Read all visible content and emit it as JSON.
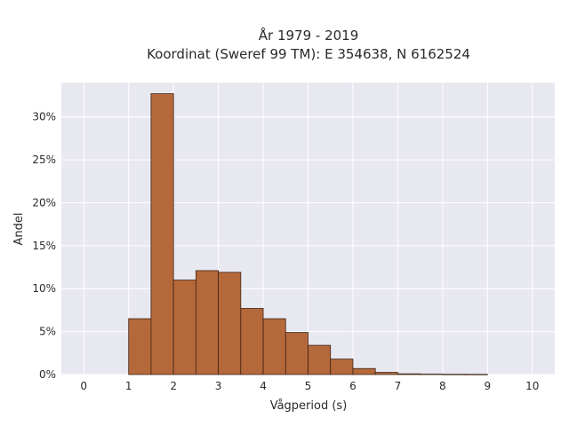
{
  "chart_data": {
    "type": "bar",
    "title_line1": "År 1979 - 2019",
    "title_line2": "Koordinat (Sweref 99 TM): E 354638, N 6162524",
    "xlabel": "Vågperiod (s)",
    "ylabel": "Andel",
    "xlim": [
      -0.5,
      10.5
    ],
    "ylim": [
      0,
      0.34
    ],
    "xticks": [
      0,
      1,
      2,
      3,
      4,
      5,
      6,
      7,
      8,
      9,
      10
    ],
    "xtick_labels": [
      "0",
      "1",
      "2",
      "3",
      "4",
      "5",
      "6",
      "7",
      "8",
      "9",
      "10"
    ],
    "yticks": [
      0,
      0.05,
      0.1,
      0.15,
      0.2,
      0.25,
      0.3
    ],
    "ytick_labels": [
      "0%",
      "5%",
      "10%",
      "15%",
      "20%",
      "25%",
      "30%"
    ],
    "bin_width": 0.5,
    "bins": [
      {
        "x0": 1.0,
        "value": 0.065
      },
      {
        "x0": 1.5,
        "value": 0.327
      },
      {
        "x0": 2.0,
        "value": 0.11
      },
      {
        "x0": 2.5,
        "value": 0.121
      },
      {
        "x0": 3.0,
        "value": 0.119
      },
      {
        "x0": 3.5,
        "value": 0.077
      },
      {
        "x0": 4.0,
        "value": 0.065
      },
      {
        "x0": 4.5,
        "value": 0.049
      },
      {
        "x0": 5.0,
        "value": 0.034
      },
      {
        "x0": 5.5,
        "value": 0.018
      },
      {
        "x0": 6.0,
        "value": 0.007
      },
      {
        "x0": 6.5,
        "value": 0.0025
      },
      {
        "x0": 7.0,
        "value": 0.0008
      },
      {
        "x0": 7.5,
        "value": 0.0005
      },
      {
        "x0": 8.0,
        "value": 0.0003
      },
      {
        "x0": 8.5,
        "value": 0.0002
      }
    ],
    "grid": true,
    "colors": {
      "plot_bg": "#e8e8f1",
      "grid": "#ffffff",
      "bar_fill": "#b5693b",
      "bar_edge": "#3d2314"
    }
  }
}
